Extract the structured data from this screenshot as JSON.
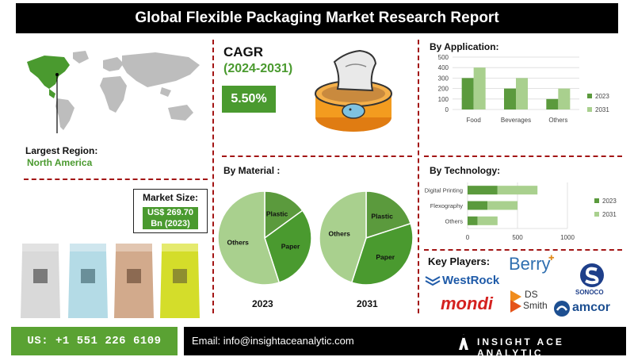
{
  "header": {
    "title": "Global Flexible Packaging Market Research Report"
  },
  "region": {
    "label": "Largest Region:",
    "value": "North America"
  },
  "market_size": {
    "label": "Market Size:",
    "value_line1": "US$ 269.70",
    "value_line2": "Bn (2023)"
  },
  "cagr": {
    "title": "CAGR",
    "period": "(2024-2031)",
    "value": "5.50%"
  },
  "colors": {
    "dark_green": "#5b9a3d",
    "light_green": "#a9d08e",
    "accent_green": "#4a9a2f",
    "divider_red": "#a31515"
  },
  "chart_data": [
    {
      "type": "bar",
      "title": "By Application:",
      "categories": [
        "Food",
        "Beverages",
        "Others"
      ],
      "series": [
        {
          "name": "2023",
          "values": [
            300,
            200,
            100
          ]
        },
        {
          "name": "2031",
          "values": [
            400,
            300,
            200
          ]
        }
      ],
      "ylim": [
        0,
        500
      ],
      "yticks": [
        0,
        100,
        200,
        300,
        400,
        500
      ],
      "legend": "right",
      "grid": true
    },
    {
      "type": "bar",
      "orientation": "horizontal",
      "stacked": true,
      "title": "By Technology:",
      "categories": [
        "Digital Printing",
        "Flexography",
        "Others"
      ],
      "series": [
        {
          "name": "2023",
          "values": [
            300,
            200,
            100
          ]
        },
        {
          "name": "2031",
          "values": [
            400,
            300,
            200
          ]
        }
      ],
      "xlim": [
        0,
        1000
      ],
      "xticks": [
        0,
        500,
        1000
      ],
      "legend": "right",
      "grid": true
    },
    {
      "type": "pie",
      "title": "By Material :",
      "year": "2023",
      "slices": [
        {
          "label": "Plastic",
          "value": 15
        },
        {
          "label": "Paper",
          "value": 30
        },
        {
          "label": "Others",
          "value": 55
        }
      ]
    },
    {
      "type": "pie",
      "year": "2031",
      "slices": [
        {
          "label": "Plastic",
          "value": 20
        },
        {
          "label": "Paper",
          "value": 35
        },
        {
          "label": "Others",
          "value": 45
        }
      ]
    }
  ],
  "key_players": {
    "title": "Key Players:",
    "logos": [
      "Berry",
      "WestRock",
      "SONOCO",
      "mondi",
      "DS",
      "Smith",
      "amcor"
    ]
  },
  "footer": {
    "phone": "US: +1 551 226 6109",
    "email": "Email: info@insightaceanalytic.com",
    "brand": "INSIGHT ACE ANALYTIC"
  },
  "icons": [
    "world-map-icon",
    "food-can-icon",
    "pouch-icon",
    "brand-mark-icon"
  ]
}
